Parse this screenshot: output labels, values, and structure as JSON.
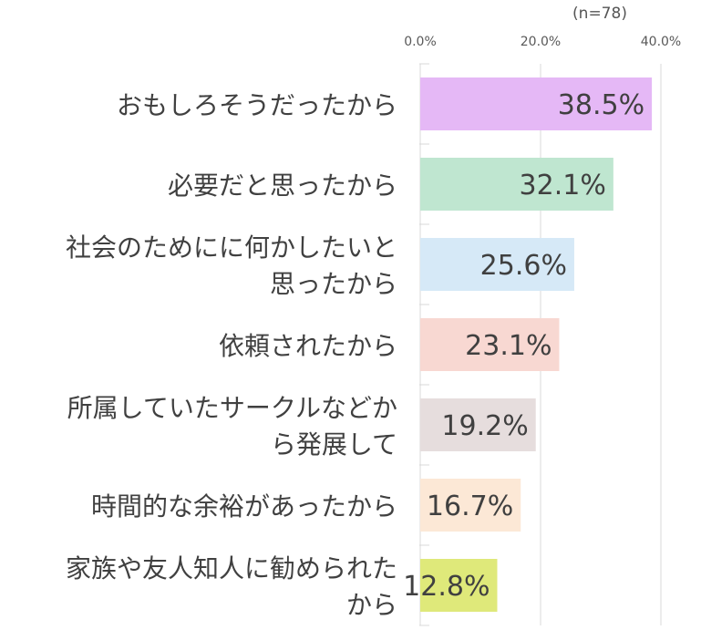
{
  "chart_data": {
    "type": "bar",
    "orientation": "horizontal",
    "note": "(n=78)",
    "x_ticks": [
      "0.0%",
      "20.0%",
      "40.0%"
    ],
    "x_tick_values": [
      0,
      20,
      40
    ],
    "xlim": [
      0,
      40
    ],
    "grid": true,
    "categories": [
      [
        "おもしろそうだったから"
      ],
      [
        "必要だと思ったから"
      ],
      [
        "社会のためにに何かしたいと",
        "思ったから"
      ],
      [
        "依頼されたから"
      ],
      [
        "所属していたサークルなどか",
        "ら発展して"
      ],
      [
        "時間的な余裕があったから"
      ],
      [
        "家族や友人知人に勧められた",
        "から"
      ]
    ],
    "values": [
      38.5,
      32.1,
      25.6,
      23.1,
      19.2,
      16.7,
      12.8
    ],
    "value_labels": [
      "38.5%",
      "32.1%",
      "25.6%",
      "23.1%",
      "19.2%",
      "16.7%",
      "12.8%"
    ],
    "colors": [
      "#e5b8f6",
      "#bfe6d0",
      "#d6e9f7",
      "#f8d8d2",
      "#e6dddd",
      "#fce8d6",
      "#dfe97a"
    ]
  }
}
